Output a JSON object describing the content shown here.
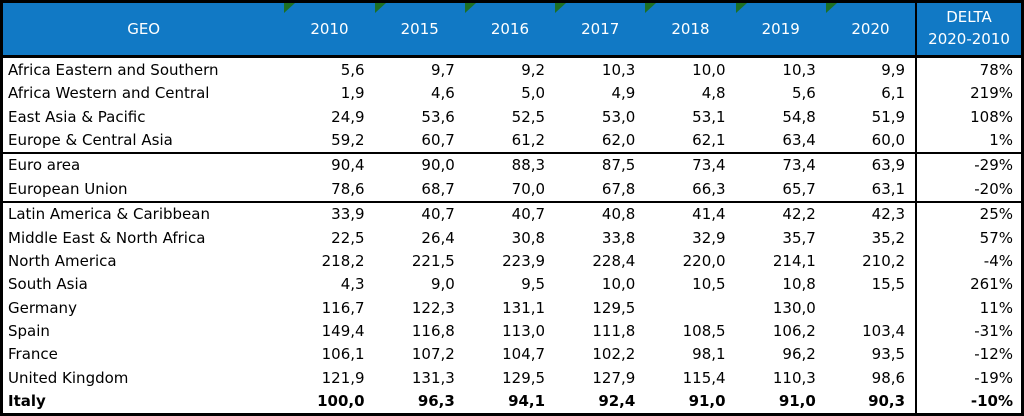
{
  "colors": {
    "header_bg": "#1179C5",
    "header_text": "#FFFFFF",
    "flag_green": "#1E7023",
    "border": "#000000",
    "row_bg": "#FFFFFF",
    "text": "#000000"
  },
  "table": {
    "header": {
      "geo": "GEO",
      "years": [
        "2010",
        "2015",
        "2016",
        "2017",
        "2018",
        "2019",
        "2020"
      ],
      "delta": [
        "DELTA",
        "2020-2010"
      ]
    },
    "rows": [
      {
        "geo": "Africa Eastern and Southern",
        "values": [
          "5,6",
          "9,7",
          "9,2",
          "10,3",
          "10,0",
          "10,3",
          "9,9"
        ],
        "delta": "78%",
        "group_start": false,
        "bold": false
      },
      {
        "geo": "Africa Western and Central",
        "values": [
          "1,9",
          "4,6",
          "5,0",
          "4,9",
          "4,8",
          "5,6",
          "6,1"
        ],
        "delta": "219%",
        "group_start": false,
        "bold": false
      },
      {
        "geo": "East Asia & Pacific",
        "values": [
          "24,9",
          "53,6",
          "52,5",
          "53,0",
          "53,1",
          "54,8",
          "51,9"
        ],
        "delta": "108%",
        "group_start": false,
        "bold": false
      },
      {
        "geo": "Europe & Central Asia",
        "values": [
          "59,2",
          "60,7",
          "61,2",
          "62,0",
          "62,1",
          "63,4",
          "60,0"
        ],
        "delta": "1%",
        "group_start": false,
        "bold": false
      },
      {
        "geo": "Euro area",
        "values": [
          "90,4",
          "90,0",
          "88,3",
          "87,5",
          "73,4",
          "73,4",
          "63,9"
        ],
        "delta": "-29%",
        "group_start": true,
        "bold": false
      },
      {
        "geo": "European Union",
        "values": [
          "78,6",
          "68,7",
          "70,0",
          "67,8",
          "66,3",
          "65,7",
          "63,1"
        ],
        "delta": "-20%",
        "group_start": false,
        "bold": false
      },
      {
        "geo": "Latin America & Caribbean",
        "values": [
          "33,9",
          "40,7",
          "40,7",
          "40,8",
          "41,4",
          "42,2",
          "42,3"
        ],
        "delta": "25%",
        "group_start": true,
        "bold": false
      },
      {
        "geo": "Middle East & North Africa",
        "values": [
          "22,5",
          "26,4",
          "30,8",
          "33,8",
          "32,9",
          "35,7",
          "35,2"
        ],
        "delta": "57%",
        "group_start": false,
        "bold": false
      },
      {
        "geo": "North America",
        "values": [
          "218,2",
          "221,5",
          "223,9",
          "228,4",
          "220,0",
          "214,1",
          "210,2"
        ],
        "delta": "-4%",
        "group_start": false,
        "bold": false
      },
      {
        "geo": "South Asia",
        "values": [
          "4,3",
          "9,0",
          "9,5",
          "10,0",
          "10,5",
          "10,8",
          "15,5"
        ],
        "delta": "261%",
        "group_start": false,
        "bold": false
      },
      {
        "geo": "Germany",
        "values": [
          "116,7",
          "122,3",
          "131,1",
          "129,5",
          "",
          "130,0",
          ""
        ],
        "delta": "11%",
        "group_start": false,
        "bold": false
      },
      {
        "geo": "Spain",
        "values": [
          "149,4",
          "116,8",
          "113,0",
          "111,8",
          "108,5",
          "106,2",
          "103,4"
        ],
        "delta": "-31%",
        "group_start": false,
        "bold": false
      },
      {
        "geo": "France",
        "values": [
          "106,1",
          "107,2",
          "104,7",
          "102,2",
          "98,1",
          "96,2",
          "93,5"
        ],
        "delta": "-12%",
        "group_start": false,
        "bold": false
      },
      {
        "geo": "United Kingdom",
        "values": [
          "121,9",
          "131,3",
          "129,5",
          "127,9",
          "115,4",
          "110,3",
          "98,6"
        ],
        "delta": "-19%",
        "group_start": false,
        "bold": false
      },
      {
        "geo": "Italy",
        "values": [
          "100,0",
          "96,3",
          "94,1",
          "92,4",
          "91,0",
          "91,0",
          "90,3"
        ],
        "delta": "-10%",
        "group_start": false,
        "bold": true
      }
    ]
  },
  "chart_data": {
    "type": "table",
    "title": "",
    "columns": [
      "GEO",
      "2010",
      "2015",
      "2016",
      "2017",
      "2018",
      "2019",
      "2020",
      "DELTA 2020-2010 (%)"
    ],
    "rows": [
      [
        "Africa Eastern and Southern",
        5.6,
        9.7,
        9.2,
        10.3,
        10.0,
        10.3,
        9.9,
        78
      ],
      [
        "Africa Western and Central",
        1.9,
        4.6,
        5.0,
        4.9,
        4.8,
        5.6,
        6.1,
        219
      ],
      [
        "East Asia & Pacific",
        24.9,
        53.6,
        52.5,
        53.0,
        53.1,
        54.8,
        51.9,
        108
      ],
      [
        "Europe & Central Asia",
        59.2,
        60.7,
        61.2,
        62.0,
        62.1,
        63.4,
        60.0,
        1
      ],
      [
        "Euro area",
        90.4,
        90.0,
        88.3,
        87.5,
        73.4,
        73.4,
        63.9,
        -29
      ],
      [
        "European Union",
        78.6,
        68.7,
        70.0,
        67.8,
        66.3,
        65.7,
        63.1,
        -20
      ],
      [
        "Latin America & Caribbean",
        33.9,
        40.7,
        40.7,
        40.8,
        41.4,
        42.2,
        42.3,
        25
      ],
      [
        "Middle East & North Africa",
        22.5,
        26.4,
        30.8,
        33.8,
        32.9,
        35.7,
        35.2,
        57
      ],
      [
        "North America",
        218.2,
        221.5,
        223.9,
        228.4,
        220.0,
        214.1,
        210.2,
        -4
      ],
      [
        "South Asia",
        4.3,
        9.0,
        9.5,
        10.0,
        10.5,
        10.8,
        15.5,
        261
      ],
      [
        "Germany",
        116.7,
        122.3,
        131.1,
        129.5,
        null,
        130.0,
        null,
        11
      ],
      [
        "Spain",
        149.4,
        116.8,
        113.0,
        111.8,
        108.5,
        106.2,
        103.4,
        -31
      ],
      [
        "France",
        106.1,
        107.2,
        104.7,
        102.2,
        98.1,
        96.2,
        93.5,
        -12
      ],
      [
        "United Kingdom",
        121.9,
        131.3,
        129.5,
        127.9,
        115.4,
        110.3,
        98.6,
        -19
      ],
      [
        "Italy",
        100.0,
        96.3,
        94.1,
        92.4,
        91.0,
        91.0,
        90.3,
        -10
      ]
    ]
  }
}
